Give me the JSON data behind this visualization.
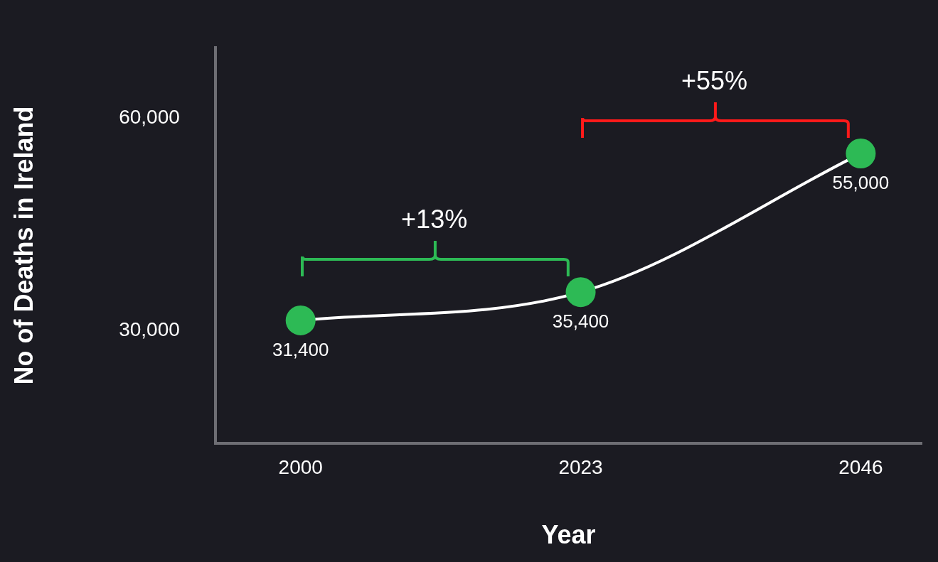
{
  "chart_data": {
    "type": "line",
    "xlabel": "Year",
    "ylabel": "No of Deaths in Ireland",
    "x": [
      2000,
      2023,
      2046
    ],
    "series": [
      {
        "color": "#ffffff",
        "colors": [
          "#2dba55",
          "#2dba55",
          "#2dba55"
        ],
        "values": [
          31400,
          35400,
          55000
        ],
        "value_labels": [
          "31,400",
          "35,400",
          "55,000"
        ]
      }
    ],
    "xlim": [
      1993,
      2051
    ],
    "xticks": [
      2000,
      2023,
      2046
    ],
    "ylim": [
      14000,
      70000
    ],
    "yticks": [
      {
        "value": 30000,
        "label": "30,000"
      },
      {
        "value": 60000,
        "label": "60,000"
      }
    ],
    "grid": false,
    "legend": false,
    "marker": "circle",
    "line_style": "solid",
    "annotations": [
      "+13%",
      "+55%"
    ]
  }
}
